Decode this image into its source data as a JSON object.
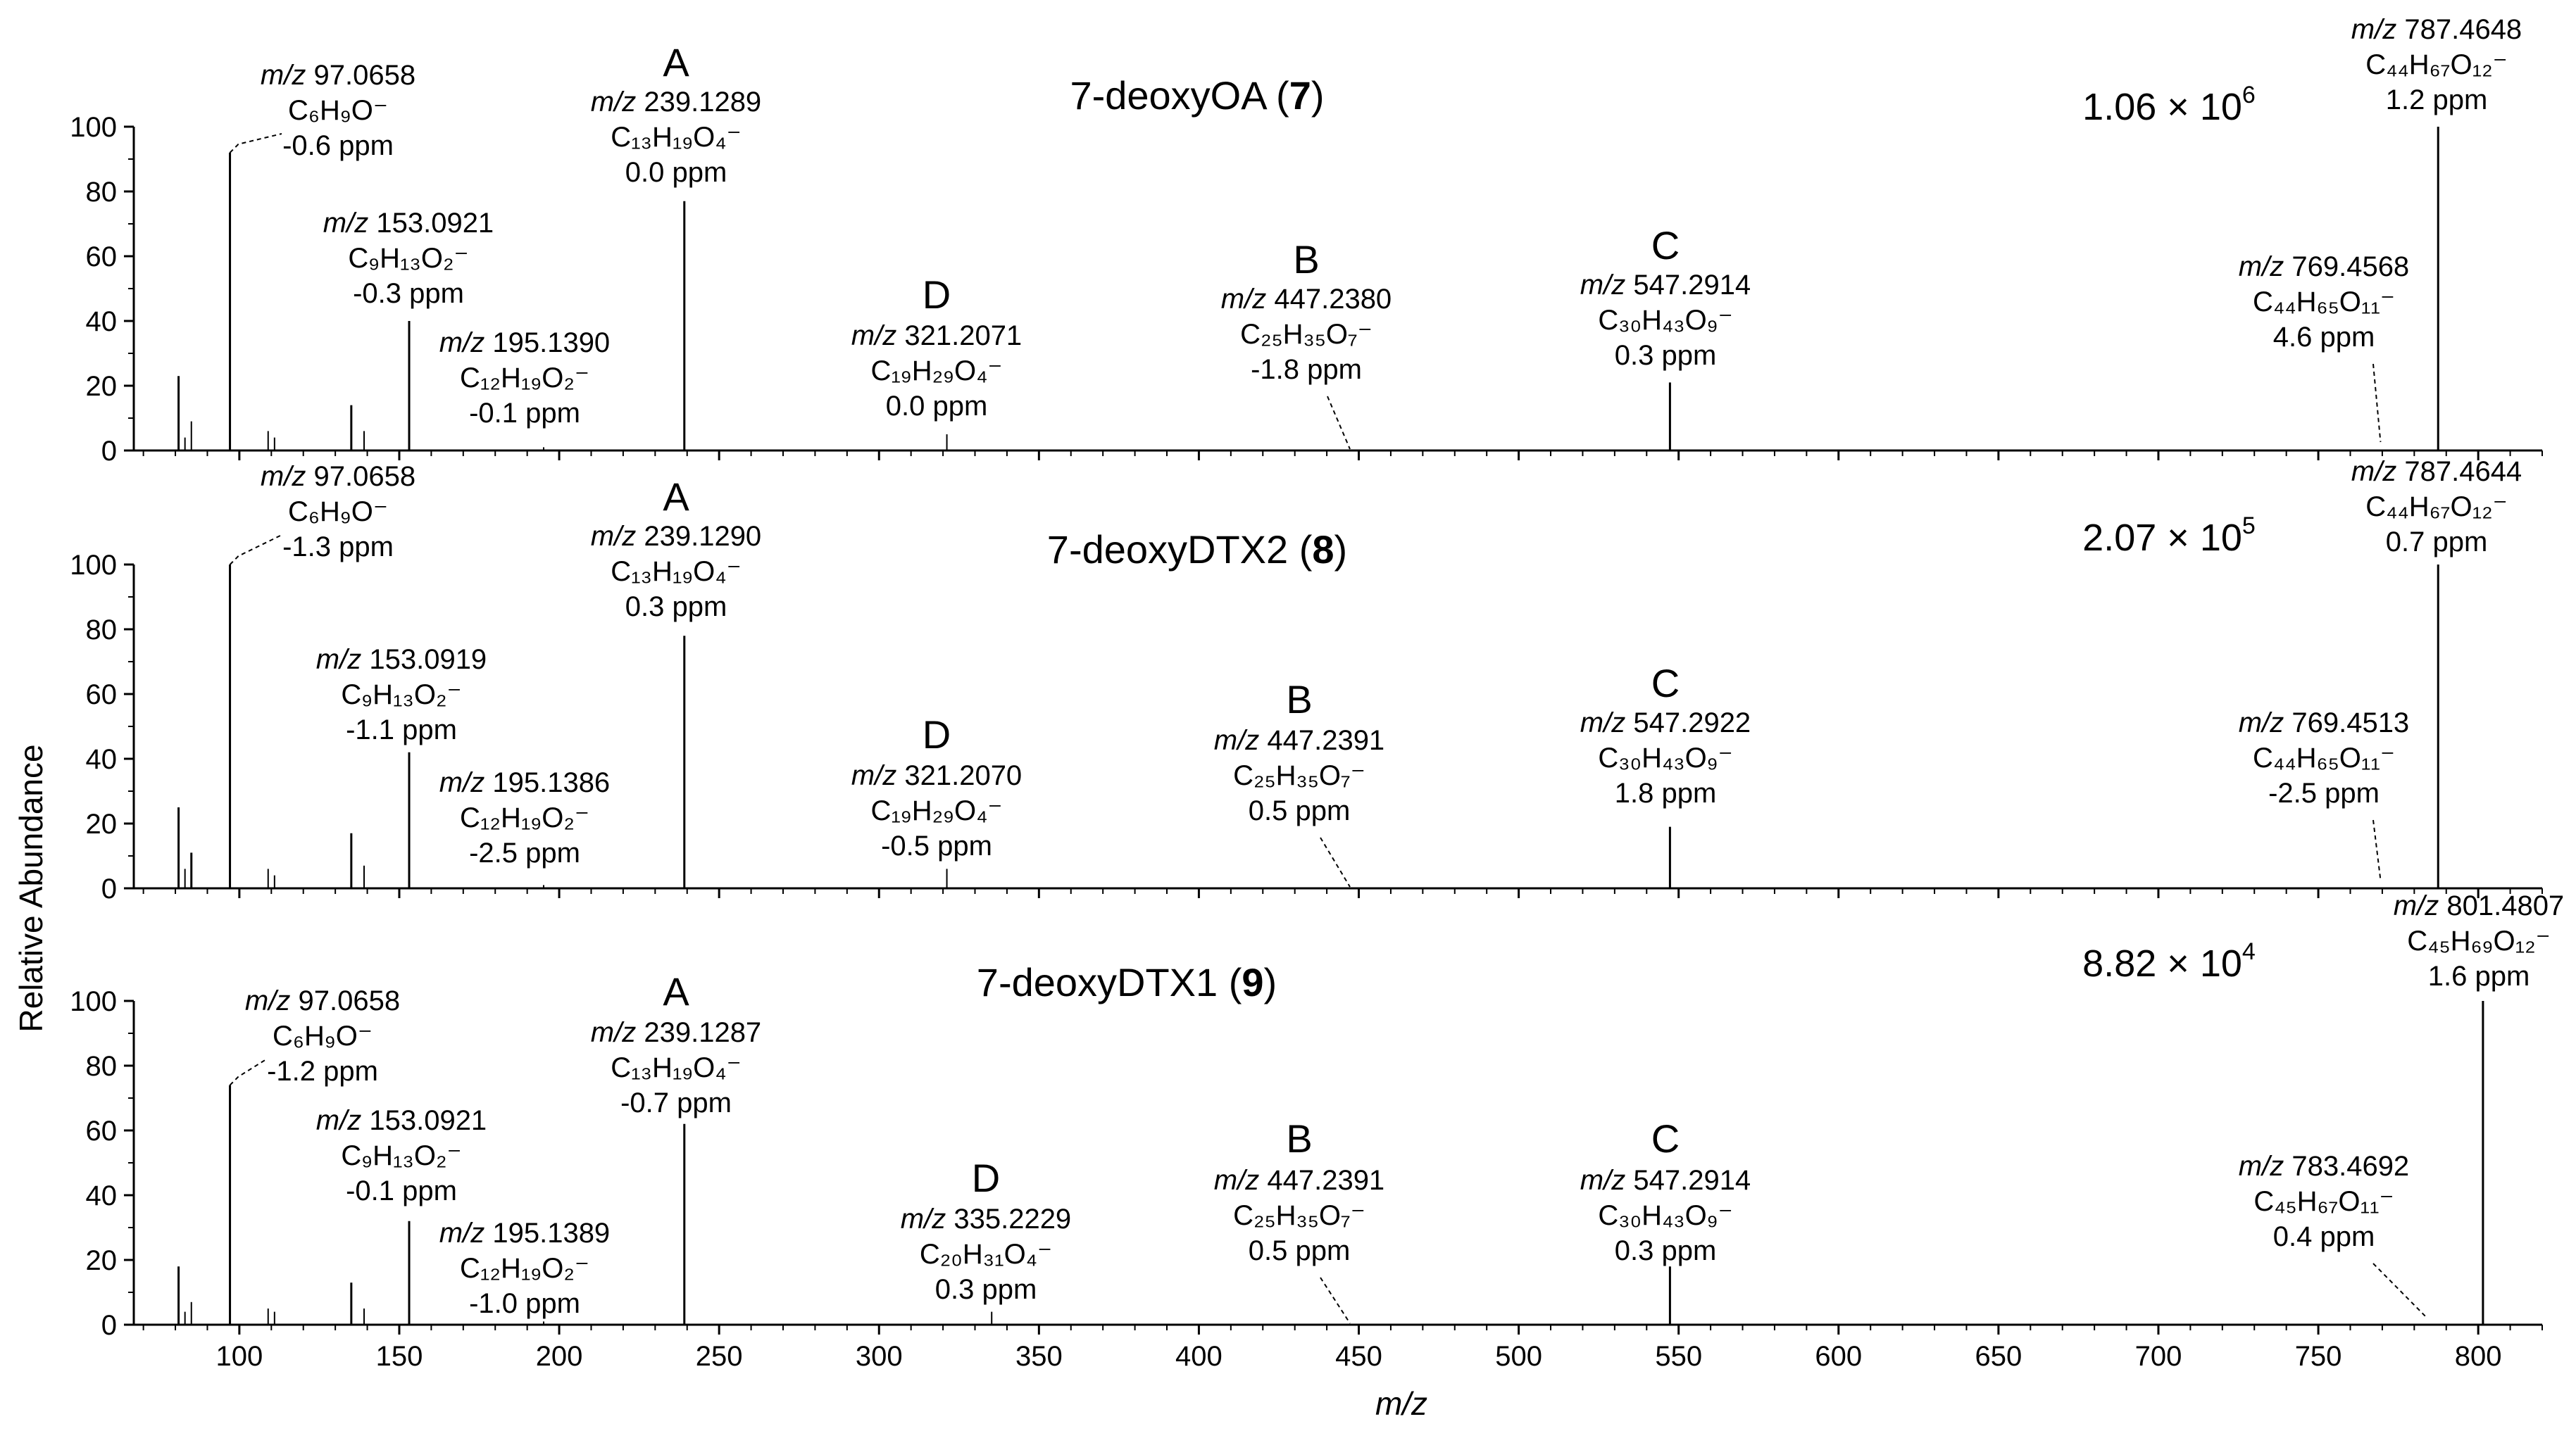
{
  "chart_data": {
    "type": "bar",
    "subtype": "mass-spectrum-stick-plot",
    "xlabel": "m/z",
    "ylabel": "Relative Abundance",
    "xlim": [
      67,
      820
    ],
    "ylim": [
      0,
      100
    ],
    "x_ticks": [
      100,
      150,
      200,
      250,
      300,
      350,
      400,
      450,
      500,
      550,
      600,
      650,
      700,
      750,
      800
    ],
    "y_ticks": [
      0,
      20,
      40,
      60,
      80,
      100
    ],
    "panels": [
      {
        "title_text": "7-deoxyOA (",
        "title_num": "7",
        "title_close": ")",
        "intensity_base": "1.06 × 10",
        "intensity_exp": "6",
        "peaks": [
          {
            "mz": 81,
            "rel": 23
          },
          {
            "mz": 83,
            "rel": 4
          },
          {
            "mz": 85,
            "rel": 9
          },
          {
            "mz": 97.0658,
            "rel": 92
          },
          {
            "mz": 109,
            "rel": 6
          },
          {
            "mz": 111,
            "rel": 4
          },
          {
            "mz": 135,
            "rel": 14
          },
          {
            "mz": 139,
            "rel": 6
          },
          {
            "mz": 153.0921,
            "rel": 40
          },
          {
            "mz": 195.139,
            "rel": 1
          },
          {
            "mz": 239.1289,
            "rel": 77
          },
          {
            "mz": 321.2071,
            "rel": 5
          },
          {
            "mz": 547.2914,
            "rel": 21
          },
          {
            "mz": 787.4648,
            "rel": 100
          }
        ],
        "annotations": [
          {
            "mz_label": "97.0658",
            "formula": "C₆H₉O⁻",
            "ppm": "-0.6 ppm"
          },
          {
            "mz_label": "153.0921",
            "formula": "C₉H₁₃O₂⁻",
            "ppm": "-0.3 ppm"
          },
          {
            "mz_label": "195.1390",
            "formula": "C₁₂H₁₉O₂⁻",
            "ppm": "-0.1 ppm"
          },
          {
            "letter": "A",
            "mz_label": "239.1289",
            "formula": "C₁₃H₁₉O₄⁻",
            "ppm": "0.0 ppm"
          },
          {
            "letter": "D",
            "mz_label": "321.2071",
            "formula": "C₁₉H₂₉O₄⁻",
            "ppm": "0.0 ppm"
          },
          {
            "letter": "B",
            "mz_label": "447.2380",
            "formula": "C₂₅H₃₅O₇⁻",
            "ppm": "-1.8 ppm"
          },
          {
            "letter": "C",
            "mz_label": "547.2914",
            "formula": "C₃₀H₄₃O₉⁻",
            "ppm": "0.3 ppm"
          },
          {
            "mz_label": "769.4568",
            "formula": "C₄₄H₆₅O₁₁⁻",
            "ppm": "4.6 ppm"
          },
          {
            "mz_label": "787.4648",
            "formula": "C₄₄H₆₇O₁₂⁻",
            "ppm": "1.2 ppm"
          }
        ]
      },
      {
        "title_text": "7-deoxyDTX2 (",
        "title_num": "8",
        "title_close": ")",
        "intensity_base": "2.07 × 10",
        "intensity_exp": "5",
        "peaks": [
          {
            "mz": 81,
            "rel": 25
          },
          {
            "mz": 83,
            "rel": 6
          },
          {
            "mz": 85,
            "rel": 11
          },
          {
            "mz": 97.0658,
            "rel": 100
          },
          {
            "mz": 109,
            "rel": 6
          },
          {
            "mz": 111,
            "rel": 4
          },
          {
            "mz": 135,
            "rel": 17
          },
          {
            "mz": 139,
            "rel": 7
          },
          {
            "mz": 153.0919,
            "rel": 42
          },
          {
            "mz": 195.1386,
            "rel": 1
          },
          {
            "mz": 239.129,
            "rel": 78
          },
          {
            "mz": 321.207,
            "rel": 6
          },
          {
            "mz": 547.2922,
            "rel": 19
          },
          {
            "mz": 787.4644,
            "rel": 100
          }
        ],
        "annotations": [
          {
            "mz_label": "97.0658",
            "formula": "C₆H₉O⁻",
            "ppm": "-1.3 ppm"
          },
          {
            "mz_label": "153.0919",
            "formula": "C₉H₁₃O₂⁻",
            "ppm": "-1.1 ppm"
          },
          {
            "mz_label": "195.1386",
            "formula": "C₁₂H₁₉O₂⁻",
            "ppm": "-2.5 ppm"
          },
          {
            "letter": "A",
            "mz_label": "239.1290",
            "formula": "C₁₃H₁₉O₄⁻",
            "ppm": "0.3 ppm"
          },
          {
            "letter": "D",
            "mz_label": "321.2070",
            "formula": "C₁₉H₂₉O₄⁻",
            "ppm": "-0.5 ppm"
          },
          {
            "letter": "B",
            "mz_label": "447.2391",
            "formula": "C₂₅H₃₅O₇⁻",
            "ppm": "0.5 ppm"
          },
          {
            "letter": "C",
            "mz_label": "547.2922",
            "formula": "C₃₀H₄₃O₉⁻",
            "ppm": "1.8 ppm"
          },
          {
            "mz_label": "769.4513",
            "formula": "C₄₄H₆₅O₁₁⁻",
            "ppm": "-2.5 ppm"
          },
          {
            "mz_label": "787.4644",
            "formula": "C₄₄H₆₇O₁₂⁻",
            "ppm": "0.7 ppm"
          }
        ]
      },
      {
        "title_text": "7-deoxyDTX1 (",
        "title_num": "9",
        "title_close": ")",
        "intensity_base": "8.82 × 10",
        "intensity_exp": "4",
        "peaks": [
          {
            "mz": 81,
            "rel": 18
          },
          {
            "mz": 83,
            "rel": 4
          },
          {
            "mz": 85,
            "rel": 7
          },
          {
            "mz": 97.0658,
            "rel": 74
          },
          {
            "mz": 109,
            "rel": 5
          },
          {
            "mz": 111,
            "rel": 4
          },
          {
            "mz": 135,
            "rel": 13
          },
          {
            "mz": 139,
            "rel": 5
          },
          {
            "mz": 153.0921,
            "rel": 32
          },
          {
            "mz": 195.1389,
            "rel": 1
          },
          {
            "mz": 239.1287,
            "rel": 62
          },
          {
            "mz": 335.2229,
            "rel": 4
          },
          {
            "mz": 547.2914,
            "rel": 18
          },
          {
            "mz": 801.4807,
            "rel": 100
          }
        ],
        "annotations": [
          {
            "mz_label": "97.0658",
            "formula": "C₆H₉O⁻",
            "ppm": "-1.2 ppm"
          },
          {
            "mz_label": "153.0921",
            "formula": "C₉H₁₃O₂⁻",
            "ppm": "-0.1 ppm"
          },
          {
            "mz_label": "195.1389",
            "formula": "C₁₂H₁₉O₂⁻",
            "ppm": "-1.0 ppm"
          },
          {
            "letter": "A",
            "mz_label": "239.1287",
            "formula": "C₁₃H₁₉O₄⁻",
            "ppm": "-0.7 ppm"
          },
          {
            "letter": "D",
            "mz_label": "335.2229",
            "formula": "C₂₀H₃₁O₄⁻",
            "ppm": "0.3 ppm"
          },
          {
            "letter": "B",
            "mz_label": "447.2391",
            "formula": "C₂₅H₃₅O₇⁻",
            "ppm": "0.5 ppm"
          },
          {
            "letter": "C",
            "mz_label": "547.2914",
            "formula": "C₃₀H₄₃O₉⁻",
            "ppm": "0.3 ppm"
          },
          {
            "mz_label": "783.4692",
            "formula": "C₄₅H₆₇O₁₁⁻",
            "ppm": "0.4 ppm"
          },
          {
            "mz_label": "801.4807",
            "formula": "C₄₅H₆₉O₁₂⁻",
            "ppm": "1.6 ppm"
          }
        ]
      }
    ]
  }
}
